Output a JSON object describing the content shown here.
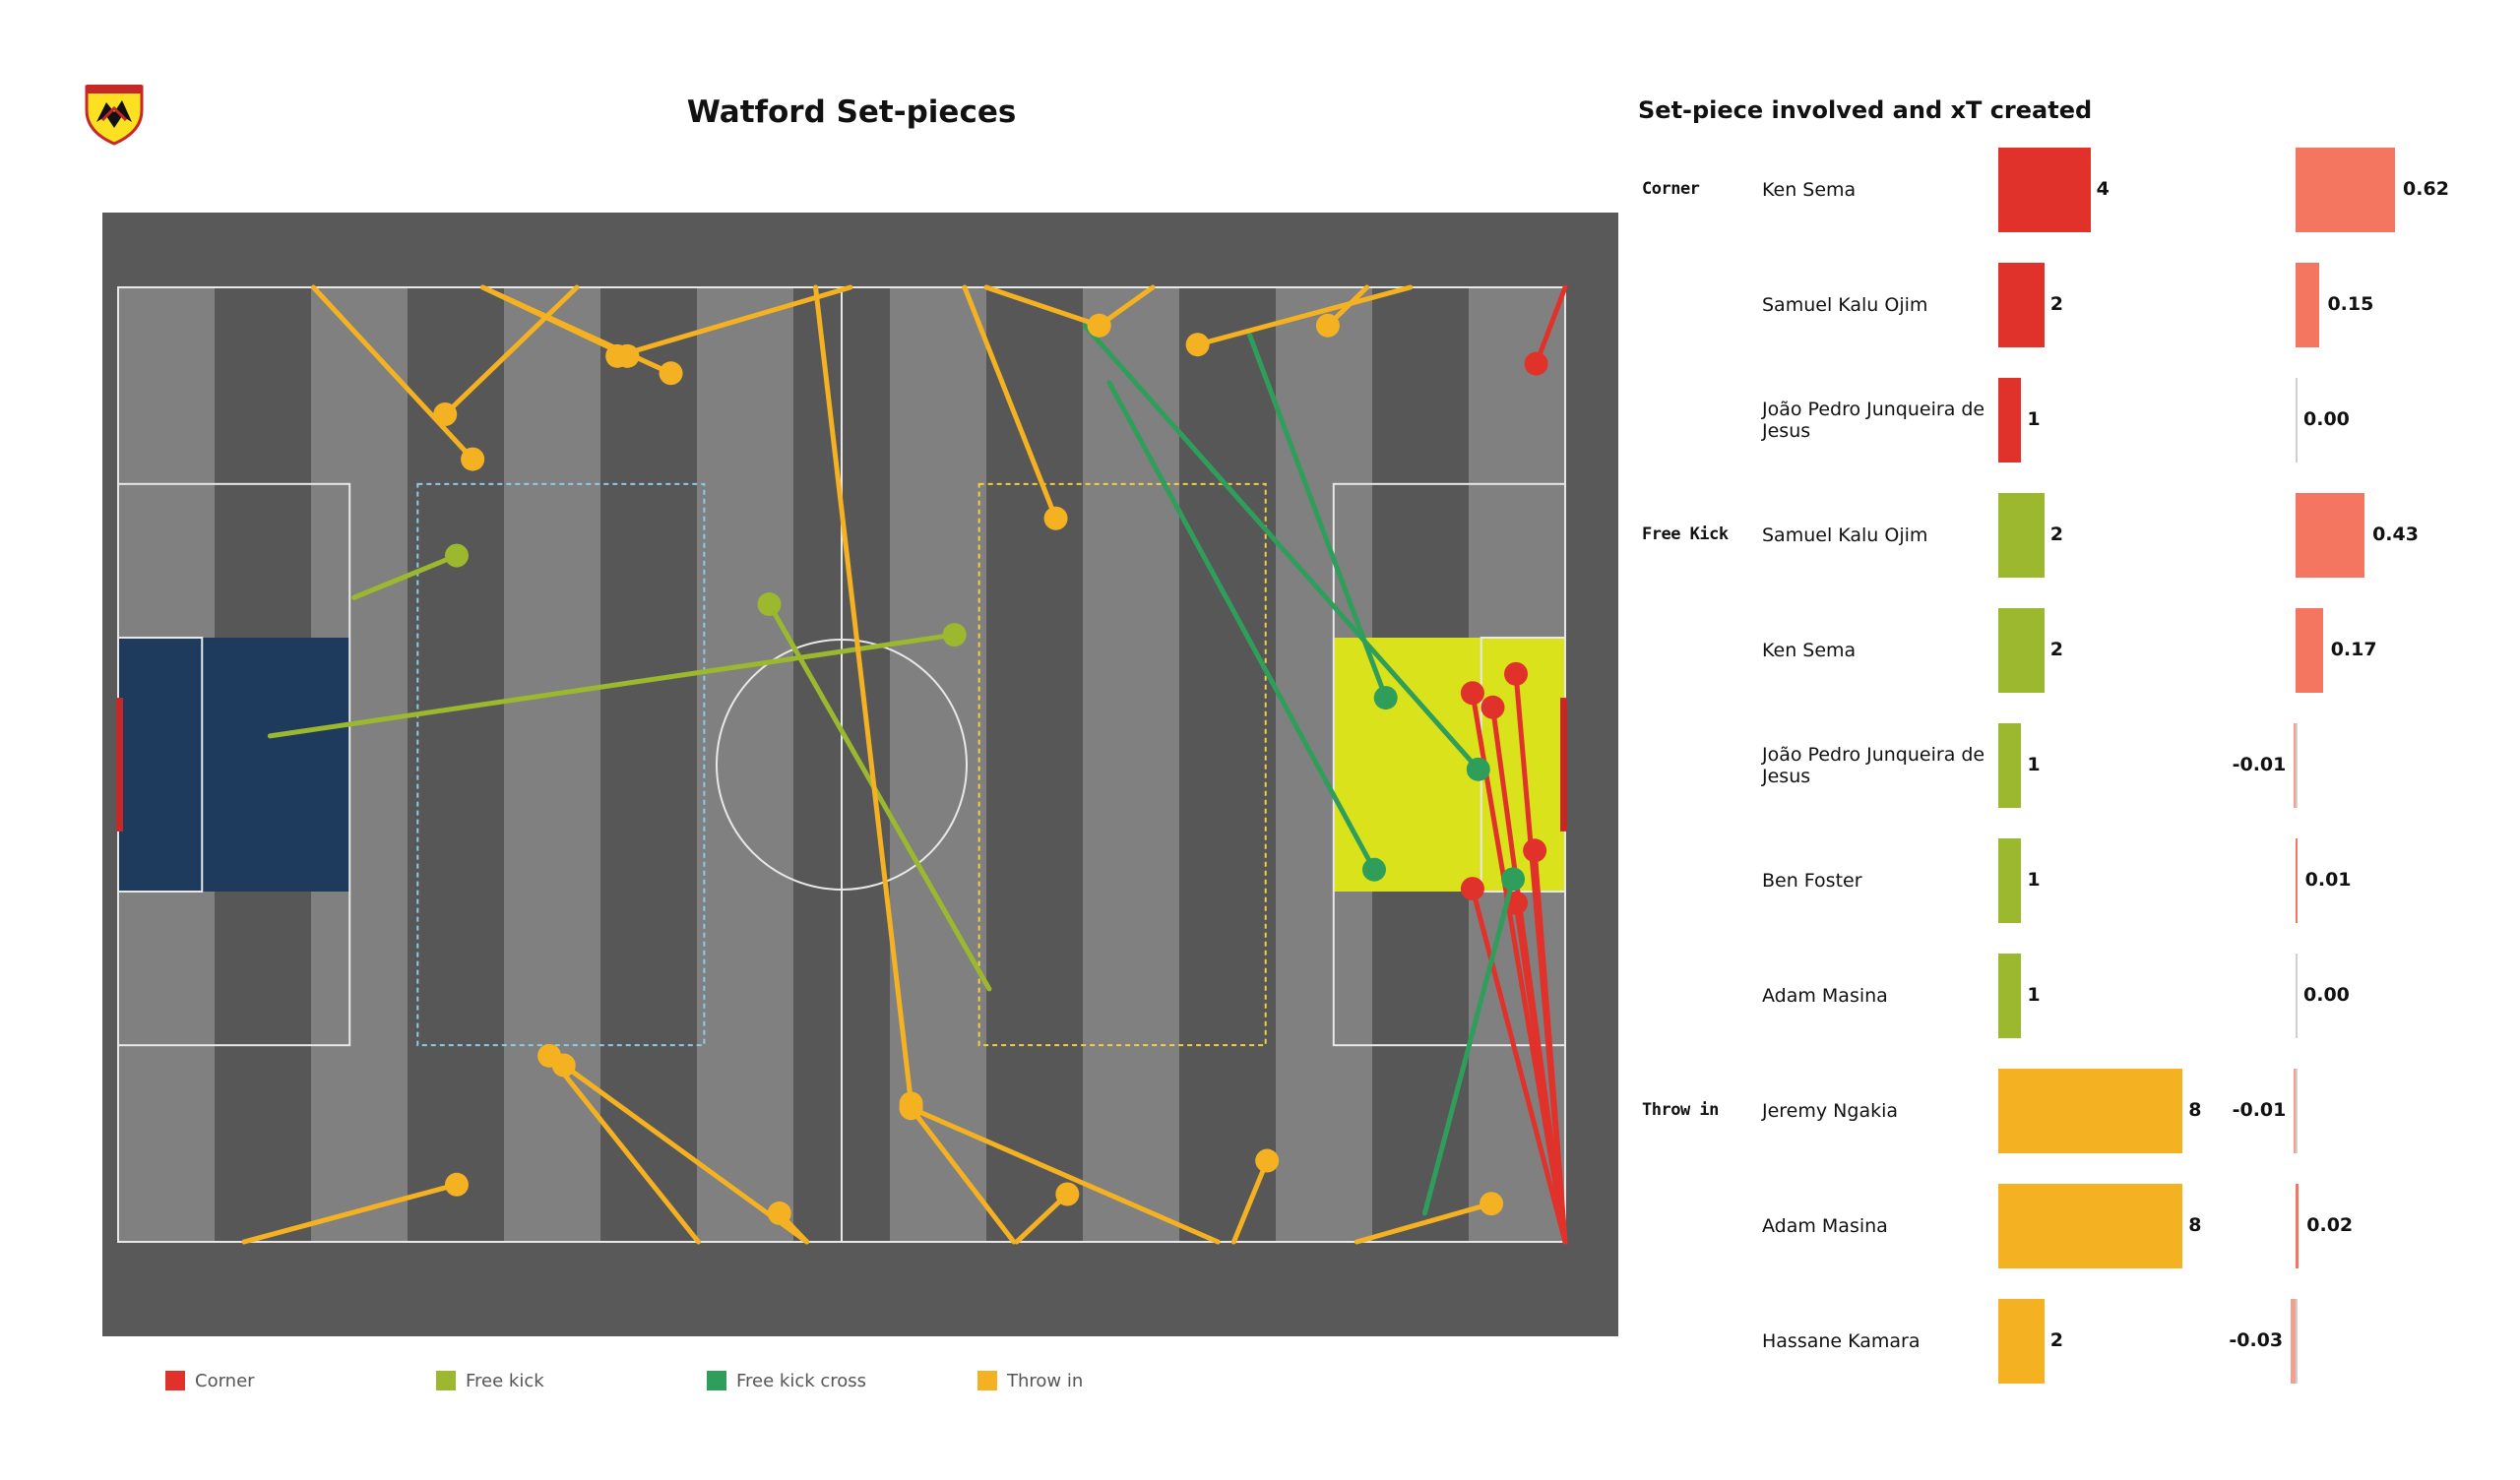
{
  "pitch_title": "Watford Set-pieces",
  "table_title": "Set-piece involved and xT created",
  "legend": [
    {
      "label": "Corner",
      "color": "#e0322a"
    },
    {
      "label": "Free kick",
      "color": "#9bb82e"
    },
    {
      "label": "Free kick cross",
      "color": "#2f9e5b"
    },
    {
      "label": "Throw in",
      "color": "#f4b223"
    }
  ],
  "colors": {
    "pitch_surround": "#595959",
    "stripe_light": "#808080",
    "stripe_dark": "#575757",
    "left_box_fill": "#1e3a5c",
    "right_box_fill": "#d9e21a",
    "corner": "#e0322a",
    "free_kick": "#9bb82e",
    "free_kick_cross": "#2f9e5b",
    "throw_in": "#f4b223",
    "xt_positive": "#f47560",
    "xt_negative": "#f3a08f"
  },
  "chart_data": [
    {
      "type": "scatter",
      "title": "Watford Set-pieces",
      "xlim": [
        0,
        100
      ],
      "ylim": [
        0,
        100
      ],
      "series": [
        {
          "name": "Corner",
          "segments": [
            [
              [
                100,
                0
              ],
              [
                98,
                8
              ]
            ],
            [
              [
                100,
                100
              ],
              [
                93.6,
                42.5
              ]
            ],
            [
              [
                100,
                100
              ],
              [
                96.6,
                40.5
              ]
            ],
            [
              [
                100,
                100
              ],
              [
                95,
                44
              ]
            ],
            [
              [
                100,
                100
              ],
              [
                97.9,
                59
              ]
            ],
            [
              [
                100,
                100
              ],
              [
                96.6,
                64.5
              ]
            ],
            [
              [
                100,
                100
              ],
              [
                93.6,
                63
              ]
            ]
          ]
        },
        {
          "name": "Free kick",
          "segments": [
            [
              [
                16.3,
                32.5
              ],
              [
                23.4,
                28.1
              ]
            ],
            [
              [
                10.5,
                47
              ],
              [
                57.8,
                36.4
              ]
            ],
            [
              [
                60.2,
                73.5
              ],
              [
                45,
                33.2
              ]
            ]
          ]
        },
        {
          "name": "Free kick cross",
          "segments": [
            [
              [
                66.8,
                4
              ],
              [
                94,
                50.5
              ]
            ],
            [
              [
                78.2,
                5
              ],
              [
                87.6,
                43
              ]
            ],
            [
              [
                68.5,
                10
              ],
              [
                86.8,
                61
              ]
            ],
            [
              [
                90.3,
                97
              ],
              [
                96.4,
                62
              ]
            ]
          ]
        },
        {
          "name": "Throw in",
          "segments": [
            [
              [
                13.5,
                0
              ],
              [
                24.5,
                18
              ]
            ],
            [
              [
                31.7,
                0
              ],
              [
                22.6,
                13.3
              ]
            ],
            [
              [
                25.2,
                0
              ],
              [
                35.2,
                7.2
              ]
            ],
            [
              [
                25.2,
                0
              ],
              [
                38.2,
                9
              ]
            ],
            [
              [
                50.6,
                0
              ],
              [
                34.5,
                7.2
              ]
            ],
            [
              [
                58.5,
                0
              ],
              [
                64.8,
                24.2
              ]
            ],
            [
              [
                60,
                0
              ],
              [
                67.8,
                4
              ]
            ],
            [
              [
                71.5,
                0
              ],
              [
                67.8,
                4
              ]
            ],
            [
              [
                89.3,
                0
              ],
              [
                74.6,
                6
              ]
            ],
            [
              [
                86.3,
                0
              ],
              [
                83.6,
                4
              ]
            ],
            [
              [
                48.2,
                0
              ],
              [
                54.8,
                85.5
              ]
            ],
            [
              [
                8.7,
                100
              ],
              [
                23.4,
                94
              ]
            ],
            [
              [
                40.1,
                100
              ],
              [
                29.8,
                80.5
              ]
            ],
            [
              [
                47.6,
                100
              ],
              [
                30.8,
                81.5
              ]
            ],
            [
              [
                61.9,
                100
              ],
              [
                54.8,
                86
              ]
            ],
            [
              [
                76,
                100
              ],
              [
                54.8,
                86
              ]
            ],
            [
              [
                47.6,
                100
              ],
              [
                45.7,
                97
              ]
            ],
            [
              [
                62.1,
                100
              ],
              [
                65.6,
                95
              ]
            ],
            [
              [
                77.1,
                100
              ],
              [
                79.4,
                91.5
              ]
            ],
            [
              [
                85.6,
                100
              ],
              [
                94.9,
                96
              ]
            ]
          ]
        }
      ]
    },
    {
      "type": "bar",
      "title": "Set-piece involved and xT created",
      "groups": [
        "Corner",
        "Free Kick",
        "Throw in"
      ],
      "rows": [
        {
          "group": "Corner",
          "player": "Ken Sema",
          "count": 4,
          "xt": 0.62,
          "xt_label": "0.62"
        },
        {
          "group": "",
          "player": "Samuel Kalu Ojim",
          "count": 2,
          "xt": 0.15,
          "xt_label": "0.15"
        },
        {
          "group": "",
          "player": "João Pedro Junqueira de Jesus",
          "count": 1,
          "xt": 0.0,
          "xt_label": "0.00"
        },
        {
          "group": "Free Kick",
          "player": "Samuel Kalu Ojim",
          "count": 2,
          "xt": 0.43,
          "xt_label": "0.43"
        },
        {
          "group": "",
          "player": "Ken Sema",
          "count": 2,
          "xt": 0.17,
          "xt_label": "0.17"
        },
        {
          "group": "",
          "player": "João Pedro Junqueira de Jesus",
          "count": 1,
          "xt": -0.01,
          "xt_label": "-0.01"
        },
        {
          "group": "",
          "player": "Ben Foster",
          "count": 1,
          "xt": 0.01,
          "xt_label": "0.01"
        },
        {
          "group": "",
          "player": "Adam Masina",
          "count": 1,
          "xt": 0.0,
          "xt_label": "0.00"
        },
        {
          "group": "Throw in",
          "player": "Jeremy Ngakia",
          "count": 8,
          "xt": -0.01,
          "xt_label": "-0.01"
        },
        {
          "group": "",
          "player": "Adam Masina",
          "count": 8,
          "xt": 0.02,
          "xt_label": "0.02"
        },
        {
          "group": "",
          "player": "Hassane Kamara",
          "count": 2,
          "xt": -0.03,
          "xt_label": "-0.03"
        }
      ]
    }
  ]
}
